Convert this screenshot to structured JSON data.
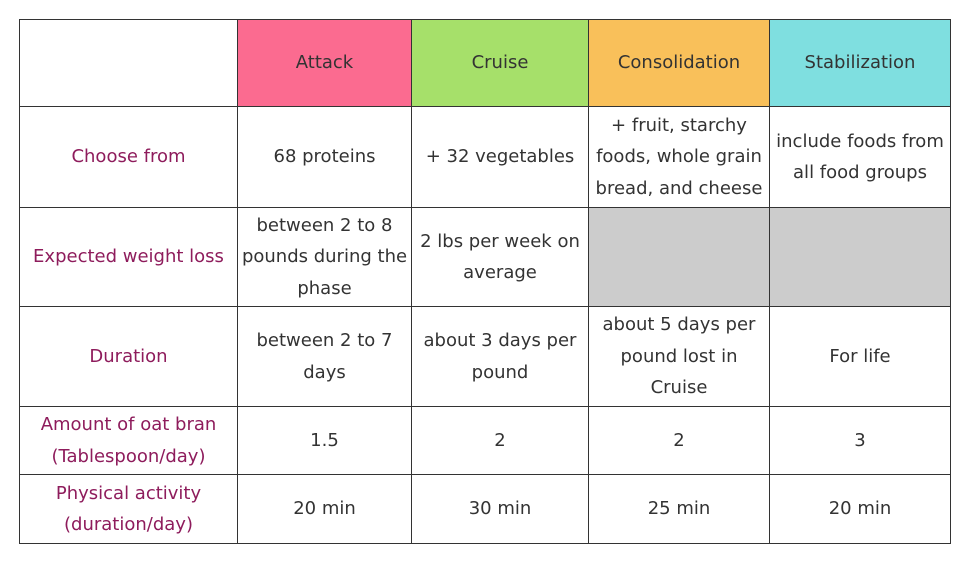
{
  "table": {
    "phases": [
      {
        "name": "Attack",
        "color": "#fb6b90"
      },
      {
        "name": "Cruise",
        "color": "#a6e06a"
      },
      {
        "name": "Consolidation",
        "color": "#f9c05a"
      },
      {
        "name": "Stabilization",
        "color": "#7fdfe0"
      }
    ],
    "rows": [
      {
        "label": "Choose from",
        "cells": [
          "68 proteins",
          "+ 32 vegetables",
          "+ fruit, starchy foods, whole grain bread, and cheese",
          "include foods from all food groups"
        ]
      },
      {
        "label": "Expected weight loss",
        "cells": [
          "between 2 to 8 pounds during the phase",
          "2 lbs per week on average",
          "",
          ""
        ]
      },
      {
        "label": "Duration",
        "cells": [
          "between 2 to 7 days",
          "about 3 days per pound",
          "about 5 days per pound lost in Cruise",
          "For life"
        ]
      },
      {
        "label": "Amount of oat bran (Tablespoon/day)",
        "cells": [
          "1.5",
          "2",
          "2",
          "3"
        ]
      },
      {
        "label": "Physical activity (duration/day)",
        "cells": [
          "20 min",
          "30 min",
          "25 min",
          "20 min"
        ]
      }
    ]
  },
  "colors": {
    "row_label_text": "#8e1c5c",
    "empty_cell": "#cccccc",
    "border": "#333333"
  }
}
